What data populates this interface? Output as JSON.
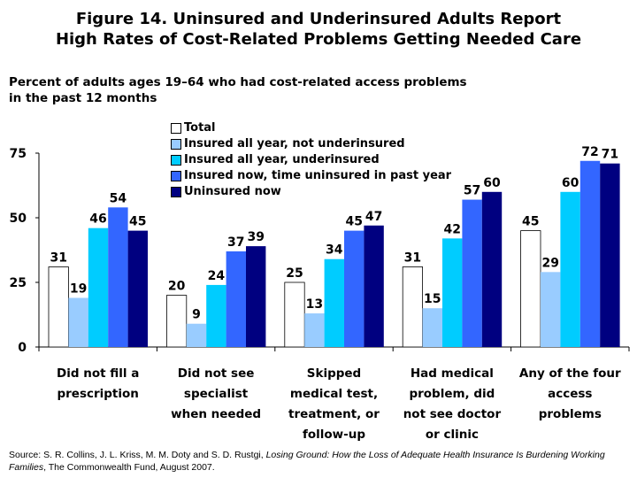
{
  "title": [
    "Figure 14. Uninsured and Underinsured Adults Report",
    "High Rates of Cost-Related Problems Getting Needed Care"
  ],
  "subtitle": [
    "Percent of adults ages 19–64 who had cost-related access problems",
    "in the past 12 months"
  ],
  "source": {
    "prefix": "Source: S. R. Collins, J. L. Kriss, M. M. Doty and S. D. Rustgi, ",
    "italic": "Losing Ground: How the Loss of Adequate Health Insurance Is Burdening Working Families",
    "suffix": ", The Commonwealth Fund, August 2007."
  },
  "chart_data": {
    "type": "bar",
    "categories": [
      [
        "Did not fill a",
        "prescription"
      ],
      [
        "Did not see",
        "specialist",
        "when needed"
      ],
      [
        "Skipped",
        "medical test,",
        "treatment, or",
        "follow-up"
      ],
      [
        "Had medical",
        "problem, did",
        "not see doctor",
        "or clinic"
      ],
      [
        "Any of the four",
        "access",
        "problems"
      ]
    ],
    "series": [
      {
        "name": "Total",
        "color": "#ffffff",
        "values": [
          31,
          20,
          25,
          31,
          45
        ]
      },
      {
        "name": "Insured all year, not underinsured",
        "color": "#99ccff",
        "values": [
          19,
          9,
          13,
          15,
          29
        ]
      },
      {
        "name": "Insured all year, underinsured",
        "color": "#00ccff",
        "values": [
          46,
          24,
          34,
          42,
          60
        ]
      },
      {
        "name": "Insured now, time uninsured in past year",
        "color": "#3366ff",
        "values": [
          54,
          37,
          45,
          57,
          72
        ]
      },
      {
        "name": "Uninsured now",
        "color": "#000080",
        "values": [
          45,
          39,
          47,
          60,
          71
        ]
      }
    ],
    "yticks": [
      0,
      25,
      50,
      75
    ],
    "ylim": [
      0,
      75
    ],
    "grid": false,
    "legend": "top-center",
    "data_labels": true
  }
}
